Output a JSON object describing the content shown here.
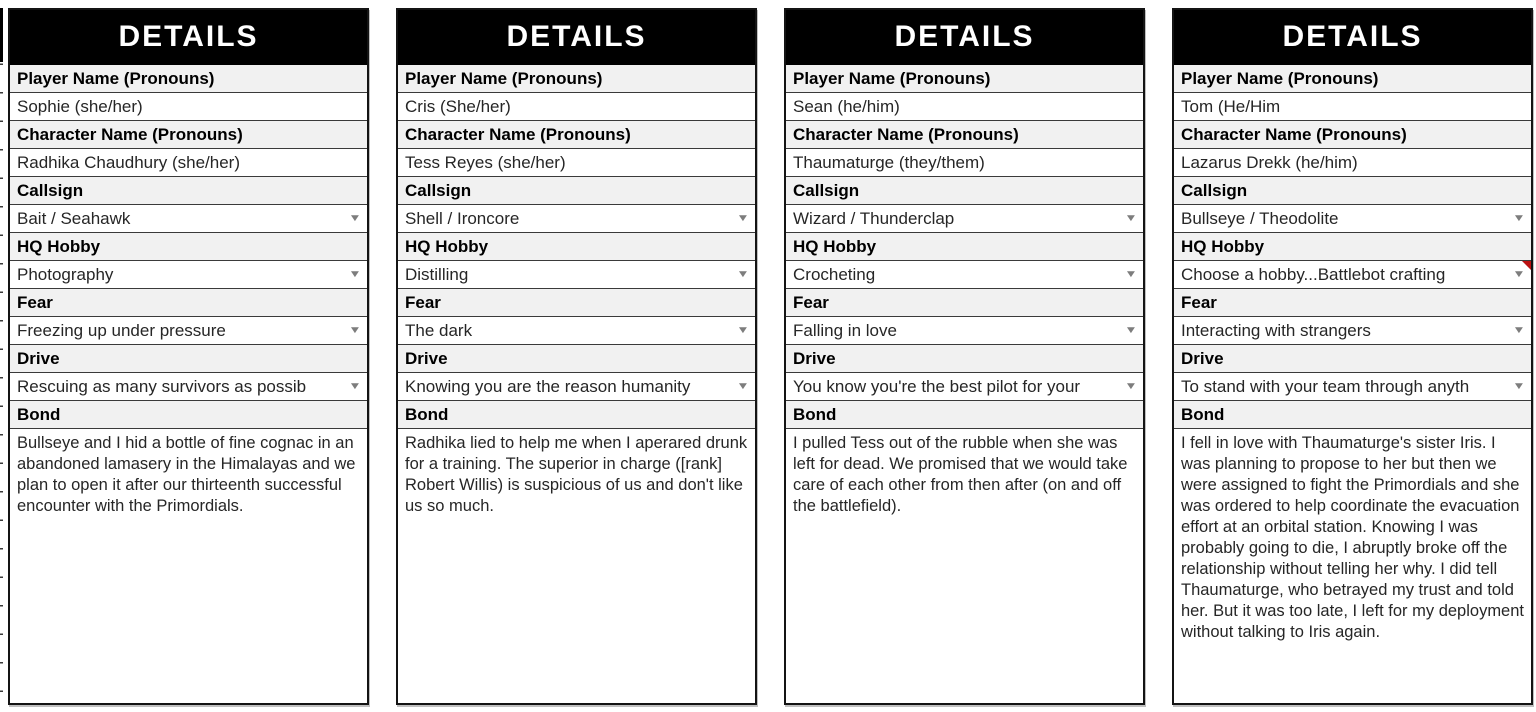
{
  "card_title": "DETAILS",
  "field_labels": {
    "player_name": "Player Name (Pronouns)",
    "character_name": "Character Name (Pronouns)",
    "callsign": "Callsign",
    "hq_hobby": "HQ Hobby",
    "fear": "Fear",
    "drive": "Drive",
    "bond": "Bond"
  },
  "dropdown_arrow": "▼",
  "colors": {
    "header_bg": "#000000",
    "header_text": "#ffffff",
    "label_row_bg": "#f1f1f1",
    "row_border": "#3a3a3a",
    "comment_marker": "#bb1111"
  },
  "cards": [
    {
      "player_name": "Sophie (she/her)",
      "character_name": "Radhika Chaudhury (she/her)",
      "callsign": "Bait / Seahawk",
      "hq_hobby": "Photography",
      "fear": "Freezing up under pressure",
      "drive": "Rescuing as many survivors as possib",
      "bond": "Bullseye and I hid a bottle of fine cognac in an abandoned lamasery in the Himalayas and we plan to open it after our thirteenth successful encounter with the Primordials."
    },
    {
      "player_name": "Cris (She/her)",
      "character_name": "Tess Reyes (she/her)",
      "callsign": "Shell / Ironcore",
      "hq_hobby": "Distilling",
      "fear": "The dark",
      "drive": "Knowing you are the reason humanity",
      "bond": "Radhika lied to help me when I aperared drunk for a training. The superior in charge ([rank] Robert Willis) is suspicious of us and don't like us so much."
    },
    {
      "player_name": "Sean (he/him)",
      "character_name": "Thaumaturge (they/them)",
      "callsign": "Wizard / Thunderclap",
      "hq_hobby": "Crocheting",
      "fear": "Falling in love",
      "drive": "You know you're the best pilot for your",
      "bond": "I pulled Tess out of the rubble when she was left for dead. We promised that we would take care of each other from then after (on and off the battlefield)."
    },
    {
      "player_name": "Tom (He/Him",
      "character_name": "Lazarus Drekk (he/him)",
      "callsign": "Bullseye / Theodolite",
      "hq_hobby": " Choose a hobby...Battlebot crafting",
      "fear": "Interacting with strangers",
      "drive": "To stand with your team through anyth",
      "bond": "I fell in love with Thaumaturge's sister Iris. I was planning to  propose to her but then we were assigned to fight the Primordials and she was ordered to help coordinate the evacuation effort at an orbital station. Knowing I was probably going to die, I abruptly broke off the relationship without telling her why. I did tell Thaumaturge, who betrayed my trust and told her. But it was too late, I left for my deployment without talking to Iris again."
    }
  ]
}
